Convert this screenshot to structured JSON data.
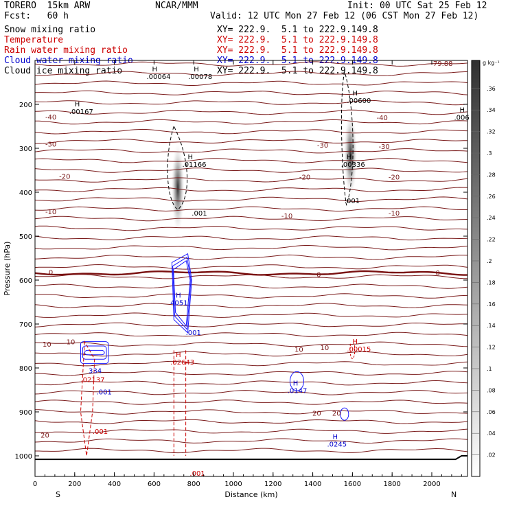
{
  "header": {
    "model": "TORERO  15km ARW",
    "center": "NCAR/MMM",
    "init": "Init: 00 UTC Sat 25 Feb 12",
    "fcst": "Fcst:   60 h",
    "valid": "Valid: 12 UTC Mon 27 Feb 12 (06 CST Mon 27 Feb 12)"
  },
  "legend": [
    {
      "label": "Snow mixing ratio",
      "color": "#000000",
      "xy": "XY= 222.9.  5.1 to 222.9.149.8"
    },
    {
      "label": "Temperature",
      "color": "#cc0000",
      "xy": "XY= 222.9.  5.1 to 222.9.149.8"
    },
    {
      "label": "Rain water mixing ratio",
      "color": "#cc0000",
      "xy": "XY= 222.9.  5.1 to 222.9.149.8"
    },
    {
      "label": "Cloud water mixing ratio",
      "color": "#0000cc",
      "xy": "XY= 222.9.  5.1 to 222.9.149.8"
    },
    {
      "label": "Cloud ice mixing ratio",
      "color": "#000000",
      "xy": "XY= 222.9.  5.1 to 222.9.149.8"
    }
  ],
  "chart_data": {
    "type": "contour",
    "xlabel": "Distance (km)",
    "ylabel": "Pressure (hPa)",
    "xlim": [
      0,
      2180
    ],
    "ylim": [
      1000,
      100
    ],
    "x_ticks": [
      0,
      200,
      400,
      600,
      800,
      1000,
      1200,
      1400,
      1600,
      1800,
      2000
    ],
    "x_tick_labels": [
      "0",
      "200",
      "400",
      "600",
      "800",
      "1000",
      "1200",
      "1400",
      "1600",
      "1800",
      "2000"
    ],
    "y_ticks": [
      200,
      300,
      400,
      500,
      600,
      700,
      800,
      900,
      1000
    ],
    "y_tick_labels": [
      "200",
      "300",
      "400",
      "500",
      "600",
      "700",
      "800",
      "900",
      "1000"
    ],
    "end_labels": {
      "left": "S",
      "right": "N"
    },
    "colorbar": {
      "unit": "g kg⁻¹",
      "ticks": [
        ".02",
        ".04",
        ".06",
        ".08",
        ".1",
        ".12",
        ".14",
        ".16",
        ".18",
        ".2",
        ".22",
        ".24",
        ".26",
        ".28",
        ".3",
        ".32",
        ".34",
        ".36"
      ]
    },
    "temperature_isotherms": [
      {
        "value": -79.88,
        "label": "-79.88",
        "x": 2050,
        "p": 106
      },
      {
        "value": -40,
        "label": "-40",
        "x": 80,
        "p": 228
      },
      {
        "value": -40,
        "label": "-40",
        "x": 1750,
        "p": 230
      },
      {
        "value": -30,
        "label": "-30",
        "x": 80,
        "p": 290
      },
      {
        "value": -30,
        "label": "-30",
        "x": 1450,
        "p": 292
      },
      {
        "value": -30,
        "label": "-30",
        "x": 1760,
        "p": 295
      },
      {
        "value": -20,
        "label": "-20",
        "x": 150,
        "p": 363
      },
      {
        "value": -20,
        "label": "-20",
        "x": 1360,
        "p": 365
      },
      {
        "value": -20,
        "label": "-20",
        "x": 1810,
        "p": 365
      },
      {
        "value": -10,
        "label": "-10",
        "x": 80,
        "p": 444
      },
      {
        "value": -10,
        "label": "-10",
        "x": 1270,
        "p": 453
      },
      {
        "value": -10,
        "label": "-10",
        "x": 1810,
        "p": 447
      },
      {
        "value": 0,
        "label": "0",
        "x": 80,
        "p": 581
      },
      {
        "value": 0,
        "label": "0",
        "x": 1430,
        "p": 587
      },
      {
        "value": 0,
        "label": "0",
        "x": 2030,
        "p": 583
      },
      {
        "value": 10,
        "label": "10",
        "x": 60,
        "p": 745
      },
      {
        "value": 10,
        "label": "10",
        "x": 180,
        "p": 740
      },
      {
        "value": 10,
        "label": "10",
        "x": 1330,
        "p": 757
      },
      {
        "value": 10,
        "label": "10",
        "x": 1460,
        "p": 753
      },
      {
        "value": 20,
        "label": "20",
        "x": 50,
        "p": 952
      },
      {
        "value": 20,
        "label": "20",
        "x": 1420,
        "p": 902
      },
      {
        "value": 20,
        "label": "20",
        "x": 1520,
        "p": 902
      }
    ],
    "maxima_labels": [
      {
        "text": "H",
        "value": ".00064",
        "x": 590,
        "p": 125,
        "color": "#000000"
      },
      {
        "text": "H",
        "value": ".00078",
        "x": 800,
        "p": 125,
        "color": "#000000"
      },
      {
        "text": "H",
        "value": ".00167",
        "x": 200,
        "p": 205,
        "color": "#000000"
      },
      {
        "text": "H",
        "value": ".00600",
        "x": 1600,
        "p": 180,
        "color": "#000000"
      },
      {
        "text": "H",
        "value": ".006",
        "x": 2140,
        "p": 218,
        "color": "#000000"
      },
      {
        "text": "H",
        "value": ".01166",
        "x": 770,
        "p": 325,
        "color": "#000000"
      },
      {
        "text": "H",
        "value": ".00336",
        "x": 1570,
        "p": 325,
        "color": "#000000"
      },
      {
        "text": ".001",
        "value": "",
        "x": 790,
        "p": 453,
        "color": "#000000"
      },
      {
        "text": ".001",
        "value": "",
        "x": 1560,
        "p": 425,
        "color": "#000000"
      },
      {
        "text": "H",
        "value": "4051",
        "x": 710,
        "p": 640,
        "color": "#0000cc"
      },
      {
        "text": ".001",
        "value": "",
        "x": 760,
        "p": 725,
        "color": "#0000cc"
      },
      {
        "text": "H",
        "value": ".02643",
        "x": 710,
        "p": 775,
        "color": "#cc0000"
      },
      {
        "text": "H",
        "value": ".00015",
        "x": 1600,
        "p": 745,
        "color": "#cc0000"
      },
      {
        "text": "334",
        "value": "",
        "x": 270,
        "p": 812,
        "color": "#0000cc"
      },
      {
        "text": ".02137",
        "value": "",
        "x": 230,
        "p": 832,
        "color": "#cc0000"
      },
      {
        "text": ".001",
        "value": "",
        "x": 310,
        "p": 860,
        "color": "#0000cc"
      },
      {
        "text": "H",
        "value": ".0147",
        "x": 1300,
        "p": 840,
        "color": "#0000cc"
      },
      {
        "text": ".001",
        "value": "",
        "x": 290,
        "p": 950,
        "color": "#cc0000"
      },
      {
        "text": "H",
        "value": ".0245",
        "x": 1500,
        "p": 962,
        "color": "#0000cc"
      },
      {
        "text": ".001",
        "value": "",
        "x": 780,
        "p": 1045,
        "color": "#cc0000"
      }
    ],
    "snow_shading": [
      {
        "x_center": 720,
        "p_center": 390,
        "x_halfwidth": 35,
        "p_halfheight": 105,
        "max": 0.3
      },
      {
        "x_center": 1590,
        "p_center": 315,
        "x_halfwidth": 35,
        "p_halfheight": 100,
        "max": 0.36
      }
    ]
  }
}
